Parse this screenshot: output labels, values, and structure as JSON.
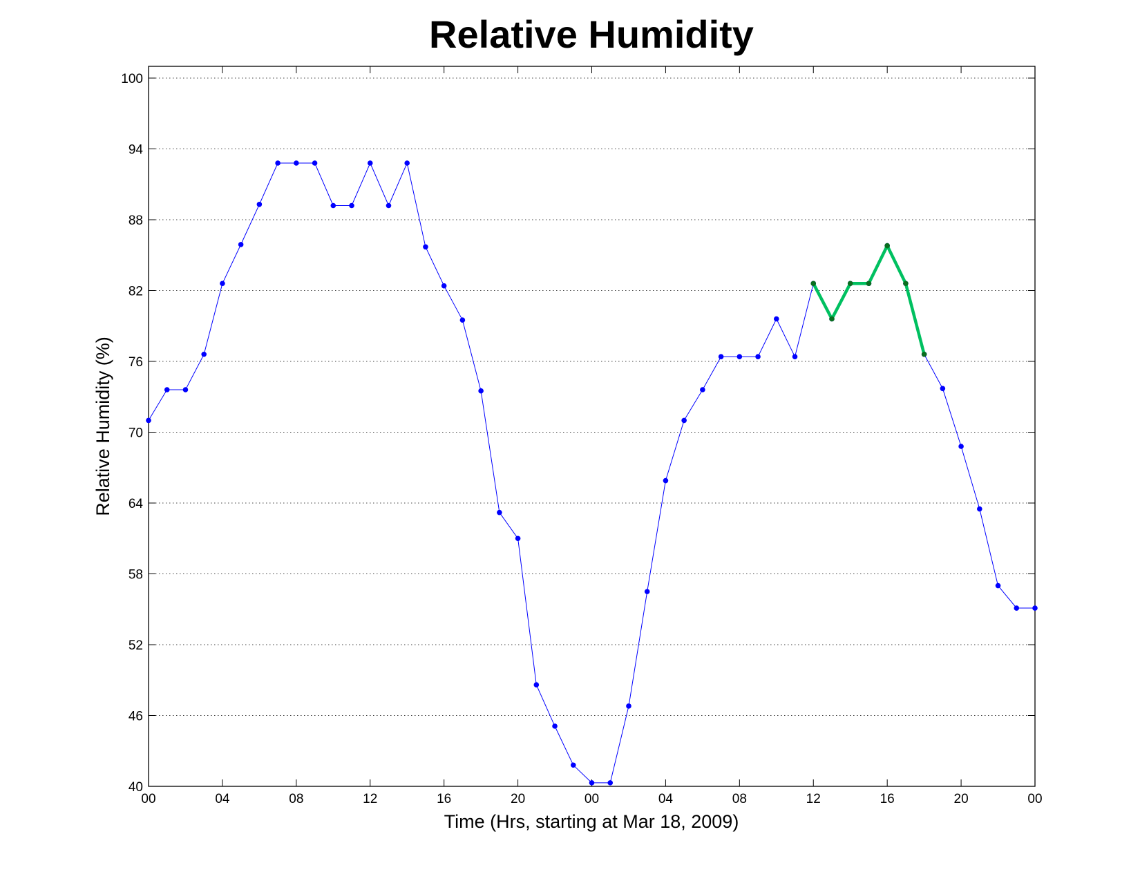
{
  "chart_data": {
    "type": "line",
    "title": "Relative Humidity",
    "xlabel": "Time (Hrs, starting at Mar 18, 2009)",
    "ylabel": "Relative Humidity (%)",
    "ylim": [
      40,
      100
    ],
    "xlim": [
      0,
      48
    ],
    "grid": "horizontal dotted",
    "x_ticks": [
      {
        "x": 0,
        "label": "00"
      },
      {
        "x": 4,
        "label": "04"
      },
      {
        "x": 8,
        "label": "08"
      },
      {
        "x": 12,
        "label": "12"
      },
      {
        "x": 16,
        "label": "16"
      },
      {
        "x": 20,
        "label": "20"
      },
      {
        "x": 24,
        "label": "00"
      },
      {
        "x": 28,
        "label": "04"
      },
      {
        "x": 32,
        "label": "08"
      },
      {
        "x": 36,
        "label": "12"
      },
      {
        "x": 40,
        "label": "16"
      },
      {
        "x": 44,
        "label": "20"
      },
      {
        "x": 48,
        "label": "00"
      }
    ],
    "y_ticks": [
      40,
      46,
      52,
      58,
      64,
      70,
      76,
      82,
      88,
      94,
      100
    ],
    "series": [
      {
        "color": "#0000ff",
        "line_width": 1,
        "marker": "dot",
        "x": [
          0,
          1,
          2,
          3,
          4,
          5,
          6,
          7,
          8,
          9,
          10,
          11,
          12,
          13,
          14,
          15,
          16,
          17,
          18,
          19,
          20,
          21,
          22,
          23,
          24,
          25,
          26,
          27,
          28,
          29,
          30,
          31,
          32,
          33,
          34,
          35,
          36,
          37,
          38,
          39,
          40,
          41,
          42,
          43,
          44,
          45,
          46,
          47,
          48
        ],
        "values": [
          71,
          73.6,
          73.6,
          76.6,
          82.6,
          85.9,
          89.3,
          92.8,
          92.8,
          92.8,
          89.2,
          89.2,
          92.8,
          89.2,
          92.8,
          85.7,
          82.4,
          79.5,
          73.5,
          63.2,
          61,
          48.6,
          45.1,
          41.8,
          40.3,
          40.3,
          46.8,
          56.5,
          65.9,
          71,
          73.6,
          76.4,
          76.4,
          76.4,
          79.6,
          76.4,
          82.6,
          79.6,
          82.6,
          82.6,
          85.8,
          82.6,
          76.6,
          73.7,
          68.8,
          63.5,
          57,
          55.1,
          55.1
        ]
      },
      {
        "color": "#00c060",
        "marker_color": "#0a6e1e",
        "line_width": 4.5,
        "marker": "dot",
        "x": [
          36,
          37,
          38,
          39,
          40,
          41,
          42
        ],
        "values": [
          82.6,
          79.6,
          82.6,
          82.6,
          85.8,
          82.6,
          76.6
        ]
      }
    ]
  }
}
